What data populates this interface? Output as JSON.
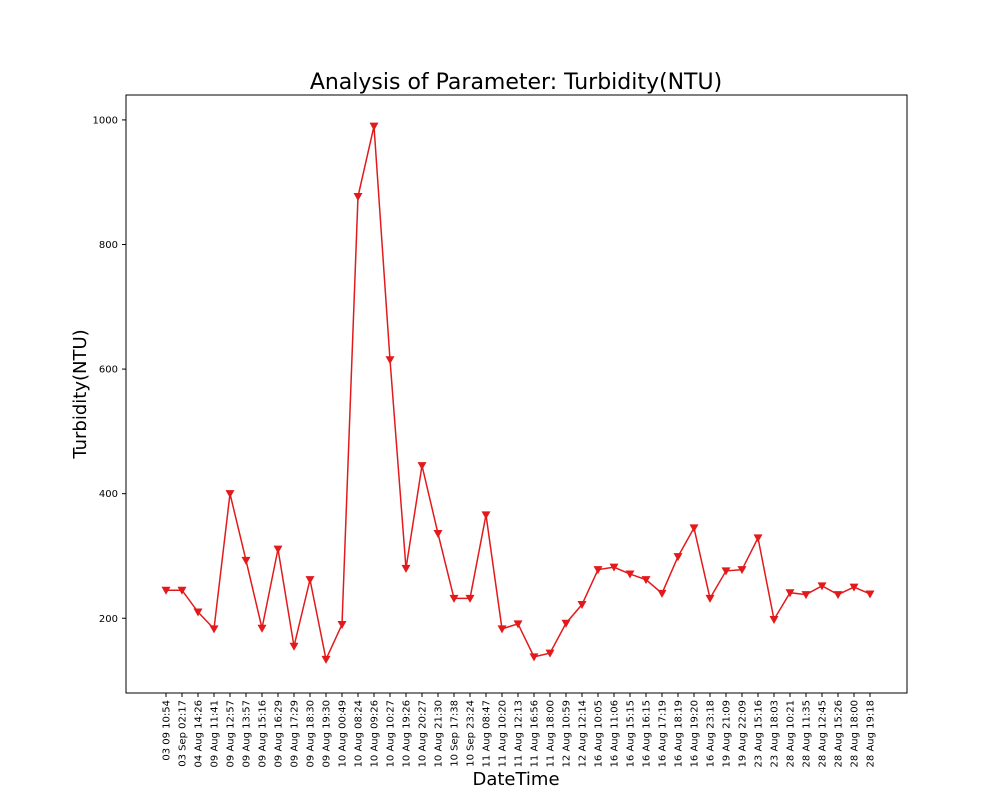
{
  "chart_data": {
    "type": "line",
    "title": "Analysis of Parameter: Turbidity(NTU)",
    "xlabel": "DateTime",
    "ylabel": "Turbidity(NTU)",
    "ylim": [
      80,
      1040
    ],
    "yticks": [
      200,
      400,
      600,
      800,
      1000
    ],
    "grid": false,
    "marker": "triangle-down",
    "series": [
      {
        "color": "#e31a1c",
        "x": [
          "03 09 10:54",
          "03 Sep 02:17",
          "04 Aug 14:26",
          "09 Aug 11:41",
          "09 Aug 12:57",
          "09 Aug 13:57",
          "09 Aug 15:16",
          "09 Aug 16:29",
          "09 Aug 17:29",
          "09 Aug 18:30",
          "09 Aug 19:30",
          "10 Aug 00:49",
          "10 Aug 08:24",
          "10 Aug 09:26",
          "10 Aug 10:27",
          "10 Aug 19:26",
          "10 Aug 20:27",
          "10 Aug 21:30",
          "10 Sep 17:38",
          "10 Sep 23:24",
          "11 Aug 08:47",
          "11 Aug 10:20",
          "11 Aug 12:13",
          "11 Aug 16:56",
          "11 Aug 18:00",
          "12 Aug 10:59",
          "12 Aug 12:14",
          "16 Aug 10:05",
          "16 Aug 11:06",
          "16 Aug 15:15",
          "16 Aug 16:15",
          "16 Aug 17:19",
          "16 Aug 18:19",
          "16 Aug 19:20",
          "16 Aug 23:18",
          "19 Aug 21:09",
          "19 Aug 22:09",
          "23 Aug 15:16",
          "23 Aug 18:03",
          "28 Aug 10:21",
          "28 Aug 11:35",
          "28 Aug 12:45",
          "28 Aug 15:26",
          "28 Aug 18:00",
          "28 Aug 19:18"
        ],
        "values": [
          245,
          245,
          210,
          183,
          400,
          293,
          184,
          311,
          155,
          262,
          134,
          190,
          877,
          990,
          615,
          280,
          445,
          336,
          232,
          232,
          366,
          183,
          191,
          138,
          144,
          192,
          222,
          278,
          282,
          271,
          262,
          240,
          299,
          345,
          232,
          276,
          278,
          329,
          198,
          241,
          238,
          252,
          238,
          250,
          239
        ]
      }
    ]
  }
}
